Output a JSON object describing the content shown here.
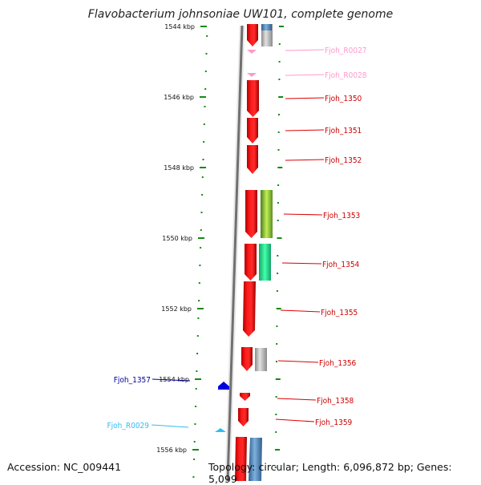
{
  "title": "Flavobacterium johnsoniae UW101, complete genome",
  "footer": {
    "accession": "Accession: NC_009441",
    "topology": "Topology: circular; Length: 6,096,872 bp; Genes: 5,099"
  },
  "colors": {
    "forward_gene": "#ff0000",
    "trna_gene": "#ff99cc",
    "ruler_tick": "#138a13",
    "backbone": "#777777",
    "reverse_gene": "#0000dd",
    "reverse_trna": "#33bbee",
    "category_gray": "#b0b0b0",
    "category_yellowgreen": "#99cc33",
    "category_mint": "#22ee99",
    "category_steelblue": "#4f86b8"
  },
  "ruler": {
    "unit": "kbp",
    "major_ticks": [
      "1544 kbp",
      "1546 kbp",
      "1548 kbp",
      "1550 kbp",
      "1552 kbp",
      "1554 kbp",
      "1556 kbp"
    ]
  },
  "genes": [
    {
      "label": "Fjoh_R0027",
      "kind": "tRNA",
      "strand": "forward"
    },
    {
      "label": "Fjoh_R0028",
      "kind": "tRNA",
      "strand": "forward"
    },
    {
      "label": "Fjoh_1350",
      "kind": "CDS",
      "strand": "forward"
    },
    {
      "label": "Fjoh_1351",
      "kind": "CDS",
      "strand": "forward"
    },
    {
      "label": "Fjoh_1352",
      "kind": "CDS",
      "strand": "forward"
    },
    {
      "label": "Fjoh_1353",
      "kind": "CDS",
      "strand": "forward",
      "category_color": "yellowgreen"
    },
    {
      "label": "Fjoh_1354",
      "kind": "CDS",
      "strand": "forward",
      "category_color": "mint"
    },
    {
      "label": "Fjoh_1355",
      "kind": "CDS",
      "strand": "forward"
    },
    {
      "label": "Fjoh_1356",
      "kind": "CDS",
      "strand": "forward",
      "category_color": "gray"
    },
    {
      "label": "Fjoh_1357",
      "kind": "CDS",
      "strand": "reverse"
    },
    {
      "label": "Fjoh_1358",
      "kind": "CDS",
      "strand": "forward"
    },
    {
      "label": "Fjoh_1359",
      "kind": "CDS",
      "strand": "forward"
    },
    {
      "label": "Fjoh_R0029",
      "kind": "tRNA",
      "strand": "reverse"
    }
  ]
}
